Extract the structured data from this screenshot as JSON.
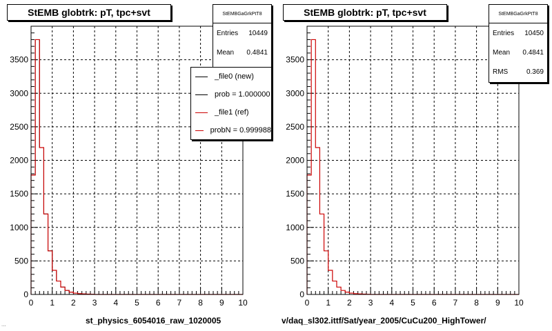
{
  "panels": [
    {
      "title": "StEMB globtrk: pT, tpc+svt",
      "stats": {
        "header": "StEMBGaGrkPtT8",
        "rows": [
          {
            "label": "Entries",
            "value": "10449"
          },
          {
            "label": "Mean",
            "value": "0.4841"
          }
        ]
      },
      "legend": [
        {
          "text": "_file0 (new)",
          "color": "#000000"
        },
        {
          "text": "prob = 1.000000",
          "color": "#000000"
        },
        {
          "text": "_file1 (ref)",
          "color": "#cc0000"
        },
        {
          "text": "probN = 0.999988",
          "color": "#cc0000"
        }
      ],
      "xcaption": "st_physics_6054016_raw_1020005"
    },
    {
      "title": "StEMB globtrk: pT, tpc+svt",
      "stats": {
        "header": "StEMBGaGrkPtT8",
        "rows": [
          {
            "label": "Entries",
            "value": "10450"
          },
          {
            "label": "Mean",
            "value": "0.4841"
          },
          {
            "label": "RMS",
            "value": "0.369"
          }
        ]
      },
      "xcaption": "v/daq_sl302.ittf/Sat/year_2005/CuCu200_HighTower/"
    }
  ],
  "footnote": "...",
  "chart_data": [
    {
      "type": "bar",
      "title": "StEMB globtrk: pT, tpc+svt",
      "xlabel": "st_physics_6054016_raw_1020005",
      "ylabel": "",
      "xlim": [
        0,
        10
      ],
      "ylim": [
        0,
        4000
      ],
      "xticks": [
        0,
        1,
        2,
        3,
        4,
        5,
        6,
        7,
        8,
        9,
        10
      ],
      "yticks": [
        0,
        500,
        1000,
        1500,
        2000,
        2500,
        3000,
        3500
      ],
      "bin_edges": [
        0,
        0.2,
        0.4,
        0.6,
        0.8,
        1.0,
        1.2,
        1.4,
        1.6,
        1.8,
        2.0,
        2.2,
        2.4,
        2.6,
        2.8,
        3.0
      ],
      "grid": true,
      "series": [
        {
          "name": "_file0 (new)",
          "color": "#000000",
          "values": [
            1780,
            3800,
            2190,
            1200,
            650,
            360,
            200,
            110,
            60,
            35,
            20,
            12,
            8,
            5,
            3
          ]
        },
        {
          "name": "_file1 (ref)",
          "color": "#cc0000",
          "values": [
            1780,
            3800,
            2190,
            1200,
            650,
            360,
            200,
            110,
            60,
            35,
            20,
            12,
            8,
            5,
            3
          ]
        }
      ]
    },
    {
      "type": "bar",
      "title": "StEMB globtrk: pT, tpc+svt",
      "xlabel": "v/daq_sl302.ittf/Sat/year_2005/CuCu200_HighTower/",
      "ylabel": "",
      "xlim": [
        0,
        10
      ],
      "ylim": [
        0,
        4000
      ],
      "xticks": [
        0,
        1,
        2,
        3,
        4,
        5,
        6,
        7,
        8,
        9,
        10
      ],
      "yticks": [
        0,
        500,
        1000,
        1500,
        2000,
        2500,
        3000,
        3500
      ],
      "bin_edges": [
        0,
        0.2,
        0.4,
        0.6,
        0.8,
        1.0,
        1.2,
        1.4,
        1.6,
        1.8,
        2.0,
        2.2,
        2.4,
        2.6,
        2.8,
        3.0
      ],
      "grid": true,
      "series": [
        {
          "name": "",
          "color": "#cc0000",
          "values": [
            1780,
            3800,
            2190,
            1200,
            650,
            360,
            200,
            110,
            60,
            35,
            20,
            12,
            8,
            5,
            3
          ]
        }
      ]
    }
  ]
}
